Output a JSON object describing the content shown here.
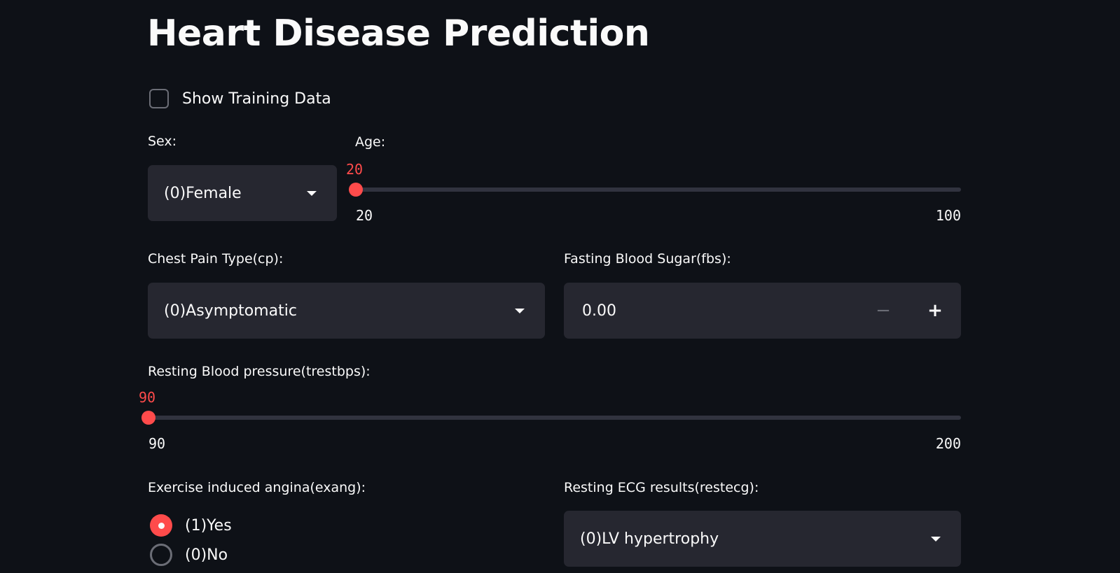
{
  "title": "Heart Disease Prediction",
  "show_training": {
    "label": "Show Training Data",
    "checked": false
  },
  "sex": {
    "label": "Sex:",
    "value": "(0)Female"
  },
  "age": {
    "label": "Age:",
    "value": "20",
    "min": "20",
    "max": "100"
  },
  "cp": {
    "label": "Chest Pain Type(cp):",
    "value": "(0)Asymptomatic"
  },
  "fbs": {
    "label": "Fasting Blood Sugar(fbs):",
    "value": "0.00",
    "minus": "−",
    "plus": "+"
  },
  "trestbps": {
    "label": "Resting Blood pressure(trestbps):",
    "value": "90",
    "min": "90",
    "max": "200"
  },
  "exang": {
    "label": "Exercise induced angina(exang):",
    "options": [
      {
        "label": "(1)Yes",
        "selected": true
      },
      {
        "label": "(0)No",
        "selected": false
      }
    ]
  },
  "restecg": {
    "label": "Resting ECG results(restecg):",
    "value": "(0)LV hypertrophy"
  },
  "colors": {
    "background": "#0e1117",
    "widget": "#262730",
    "accent": "#ff4b4b",
    "text": "#fafafa"
  },
  "icons": {
    "dropdown": "chevron-down-icon",
    "checkbox": "checkbox-icon",
    "radio": "radio-icon"
  }
}
